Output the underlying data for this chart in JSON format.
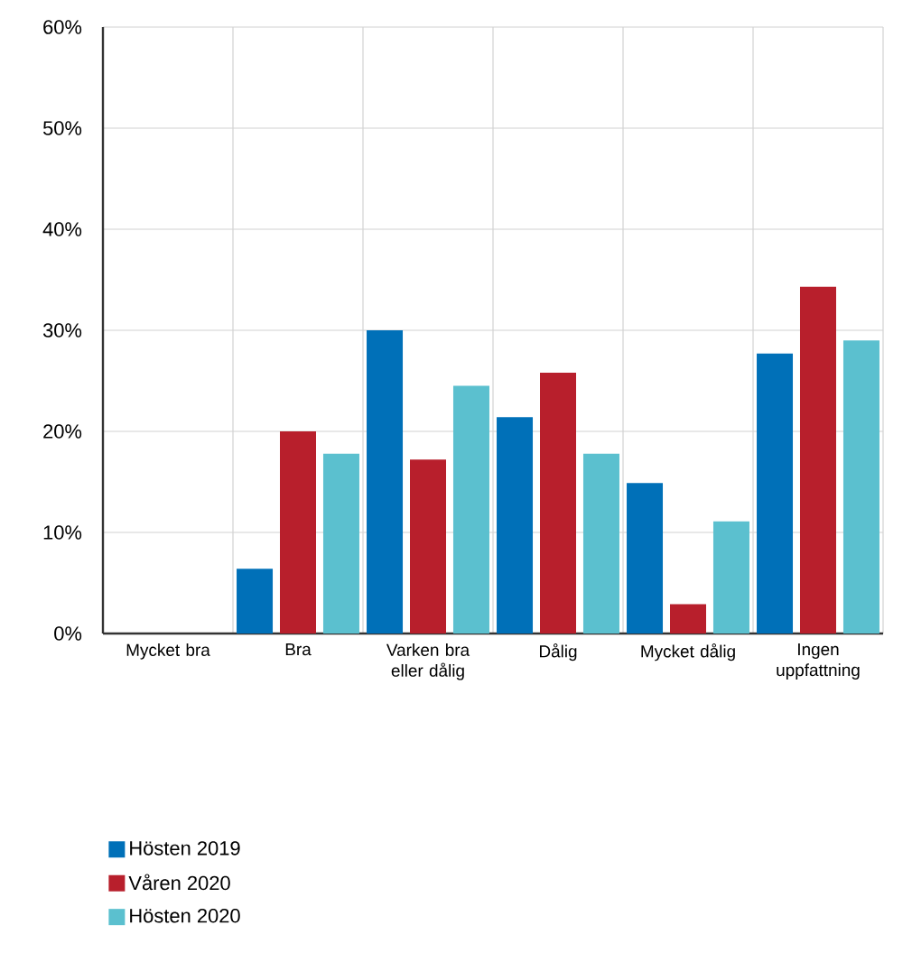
{
  "chart_data": {
    "type": "bar",
    "categories": [
      "Mycket bra",
      "Bra",
      "Varken bra eller dålig",
      "Dålig",
      "Mycket dålig",
      "Ingen uppfattning"
    ],
    "series": [
      {
        "name": "Hösten 2019",
        "color": "#0070b8",
        "values": [
          0,
          6.4,
          30.0,
          21.4,
          14.9,
          27.7
        ]
      },
      {
        "name": "Våren 2020",
        "color": "#b81f2c",
        "values": [
          0,
          20.0,
          17.2,
          25.8,
          2.9,
          34.3
        ]
      },
      {
        "name": "Hösten 2020",
        "color": "#5bc0cf",
        "values": [
          0,
          17.8,
          24.5,
          17.8,
          11.1,
          29.0
        ]
      }
    ],
    "ylim": [
      0,
      60
    ],
    "yticks": [
      {
        "value": 0,
        "label": "0%"
      },
      {
        "value": 10,
        "label": "10%"
      },
      {
        "value": 20,
        "label": "20%"
      },
      {
        "value": 30,
        "label": "30%"
      },
      {
        "value": 40,
        "label": "40%"
      },
      {
        "value": 50,
        "label": "50%"
      },
      {
        "value": 60,
        "label": "60%"
      }
    ],
    "grid": true,
    "legend": "bottom"
  }
}
